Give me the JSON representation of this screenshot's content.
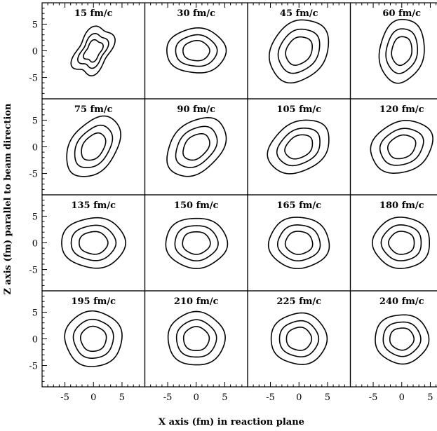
{
  "chart_data": {
    "type": "contour",
    "layout": {
      "rows": 4,
      "cols": 4
    },
    "xlabel": "X axis (fm) in reaction plane",
    "ylabel": "Z axis (fm) parallel to beam direction",
    "xlim": [
      -9,
      9
    ],
    "ylim": [
      -9,
      9
    ],
    "xticks": [
      -5,
      0,
      5
    ],
    "yticks": [
      5,
      0,
      -5
    ],
    "contour_scales": [
      0.45,
      0.7,
      1.0
    ],
    "panels": [
      {
        "label": "15 fm/c",
        "shape": "peanut",
        "rx": 3.3,
        "rz": 5.4,
        "tilt": -28
      },
      {
        "label": "30 fm/c",
        "shape": "ellipse",
        "rx": 5.2,
        "rz": 4.2,
        "tilt": 0
      },
      {
        "label": "45 fm/c",
        "shape": "ellipse",
        "rx": 4.8,
        "rz": 6.2,
        "tilt": -30
      },
      {
        "label": "60 fm/c",
        "shape": "ellipse",
        "rx": 3.9,
        "rz": 6.0,
        "tilt": -8
      },
      {
        "label": "75 fm/c",
        "shape": "ellipse",
        "rx": 4.0,
        "rz": 6.2,
        "tilt": -32
      },
      {
        "label": "90 fm/c",
        "shape": "ellipse",
        "rx": 4.3,
        "rz": 6.2,
        "tilt": -40
      },
      {
        "label": "105 fm/c",
        "shape": "ellipse",
        "rx": 4.4,
        "rz": 5.9,
        "tilt": -52
      },
      {
        "label": "120 fm/c",
        "shape": "ellipse",
        "rx": 4.6,
        "rz": 5.7,
        "tilt": -58
      },
      {
        "label": "135 fm/c",
        "shape": "ellipse",
        "rx": 5.6,
        "rz": 4.7,
        "tilt": 0
      },
      {
        "label": "150 fm/c",
        "shape": "ellipse",
        "rx": 5.4,
        "rz": 4.7,
        "tilt": 0
      },
      {
        "label": "165 fm/c",
        "shape": "ellipse",
        "rx": 5.3,
        "rz": 4.8,
        "tilt": 0
      },
      {
        "label": "180 fm/c",
        "shape": "ellipse",
        "rx": 5.0,
        "rz": 4.8,
        "tilt": 0
      },
      {
        "label": "195 fm/c",
        "shape": "ellipse",
        "rx": 5.0,
        "rz": 5.2,
        "tilt": 0
      },
      {
        "label": "210 fm/c",
        "shape": "ellipse",
        "rx": 5.0,
        "rz": 5.0,
        "tilt": 0
      },
      {
        "label": "225 fm/c",
        "shape": "ellipse",
        "rx": 4.9,
        "rz": 4.8,
        "tilt": 0
      },
      {
        "label": "240 fm/c",
        "shape": "ellipse",
        "rx": 4.7,
        "rz": 4.6,
        "tilt": 0
      }
    ]
  }
}
